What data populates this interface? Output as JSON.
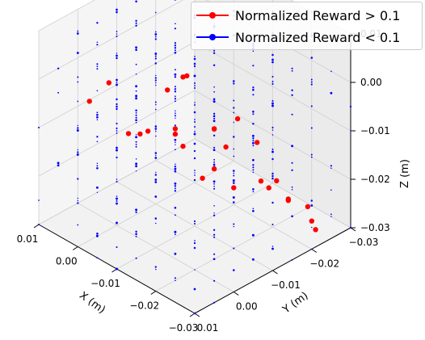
{
  "chart_data": {
    "type": "scatter",
    "projection": "3d",
    "title": "",
    "xlabel": "X (m)",
    "ylabel": "Y (m)",
    "zlabel": "Z (m)",
    "xlim": [
      -0.03,
      0.01
    ],
    "ylim": [
      -0.03,
      0.01
    ],
    "zlim": [
      -0.03,
      0.01
    ],
    "xticks": [
      "0.01",
      "0.00",
      "−0.01",
      "−0.02",
      "−0.03"
    ],
    "yticks": [
      "−0.03",
      "−0.02",
      "−0.01",
      "0.00",
      "0.01"
    ],
    "zticks": [
      "0.01",
      "0.00",
      "−0.01",
      "−0.02",
      "−0.03"
    ],
    "grid": true,
    "legend_position": "top-right",
    "series": [
      {
        "name": "Normalized Reward > 0.1",
        "color": "#ff0000",
        "marker": "circle",
        "points": [
          [
            -0.003,
            0.005,
            0.003
          ],
          [
            0.003,
            0.004,
            -0.004
          ],
          [
            -0.009,
            0.001,
            -0.006
          ],
          [
            -0.013,
            -0.002,
            -0.005
          ],
          [
            -0.019,
            -0.006,
            -0.004
          ],
          [
            -0.023,
            -0.008,
            -0.001
          ],
          [
            -0.002,
            -0.004,
            -0.012
          ],
          [
            -0.008,
            -0.009,
            -0.014
          ],
          [
            -0.006,
            0.003,
            -0.007
          ],
          [
            -0.012,
            -0.003,
            -0.007
          ],
          [
            -0.018,
            -0.01,
            -0.01
          ],
          [
            -0.002,
            -0.011,
            -0.006
          ],
          [
            -0.001,
            -0.016,
            -0.006
          ],
          [
            0.001,
            -0.019,
            -0.008
          ],
          [
            -0.008,
            -0.017,
            -0.014
          ],
          [
            -0.016,
            -0.009,
            -0.015
          ],
          [
            -0.015,
            -0.015,
            -0.022
          ],
          [
            -0.018,
            -0.019,
            -0.021
          ],
          [
            -0.012,
            -0.024,
            -0.018
          ],
          [
            -0.021,
            -0.02,
            -0.02
          ],
          [
            -0.025,
            -0.014,
            -0.017
          ],
          [
            -0.027,
            -0.017,
            -0.02
          ],
          [
            -0.028,
            -0.022,
            -0.026
          ],
          [
            -0.01,
            -0.012,
            -0.021
          ],
          [
            -0.02,
            -0.024,
            -0.026
          ],
          [
            -0.022,
            -0.027,
            -0.028
          ],
          [
            -0.026,
            -0.025,
            -0.03
          ]
        ]
      },
      {
        "name": "Normalized Reward < 0.1",
        "color": "#0000ff",
        "marker": "circle",
        "grid_values": [
          -0.03,
          -0.025,
          -0.02,
          -0.015,
          -0.01,
          -0.005,
          0.0,
          0.005,
          0.01
        ]
      }
    ]
  }
}
